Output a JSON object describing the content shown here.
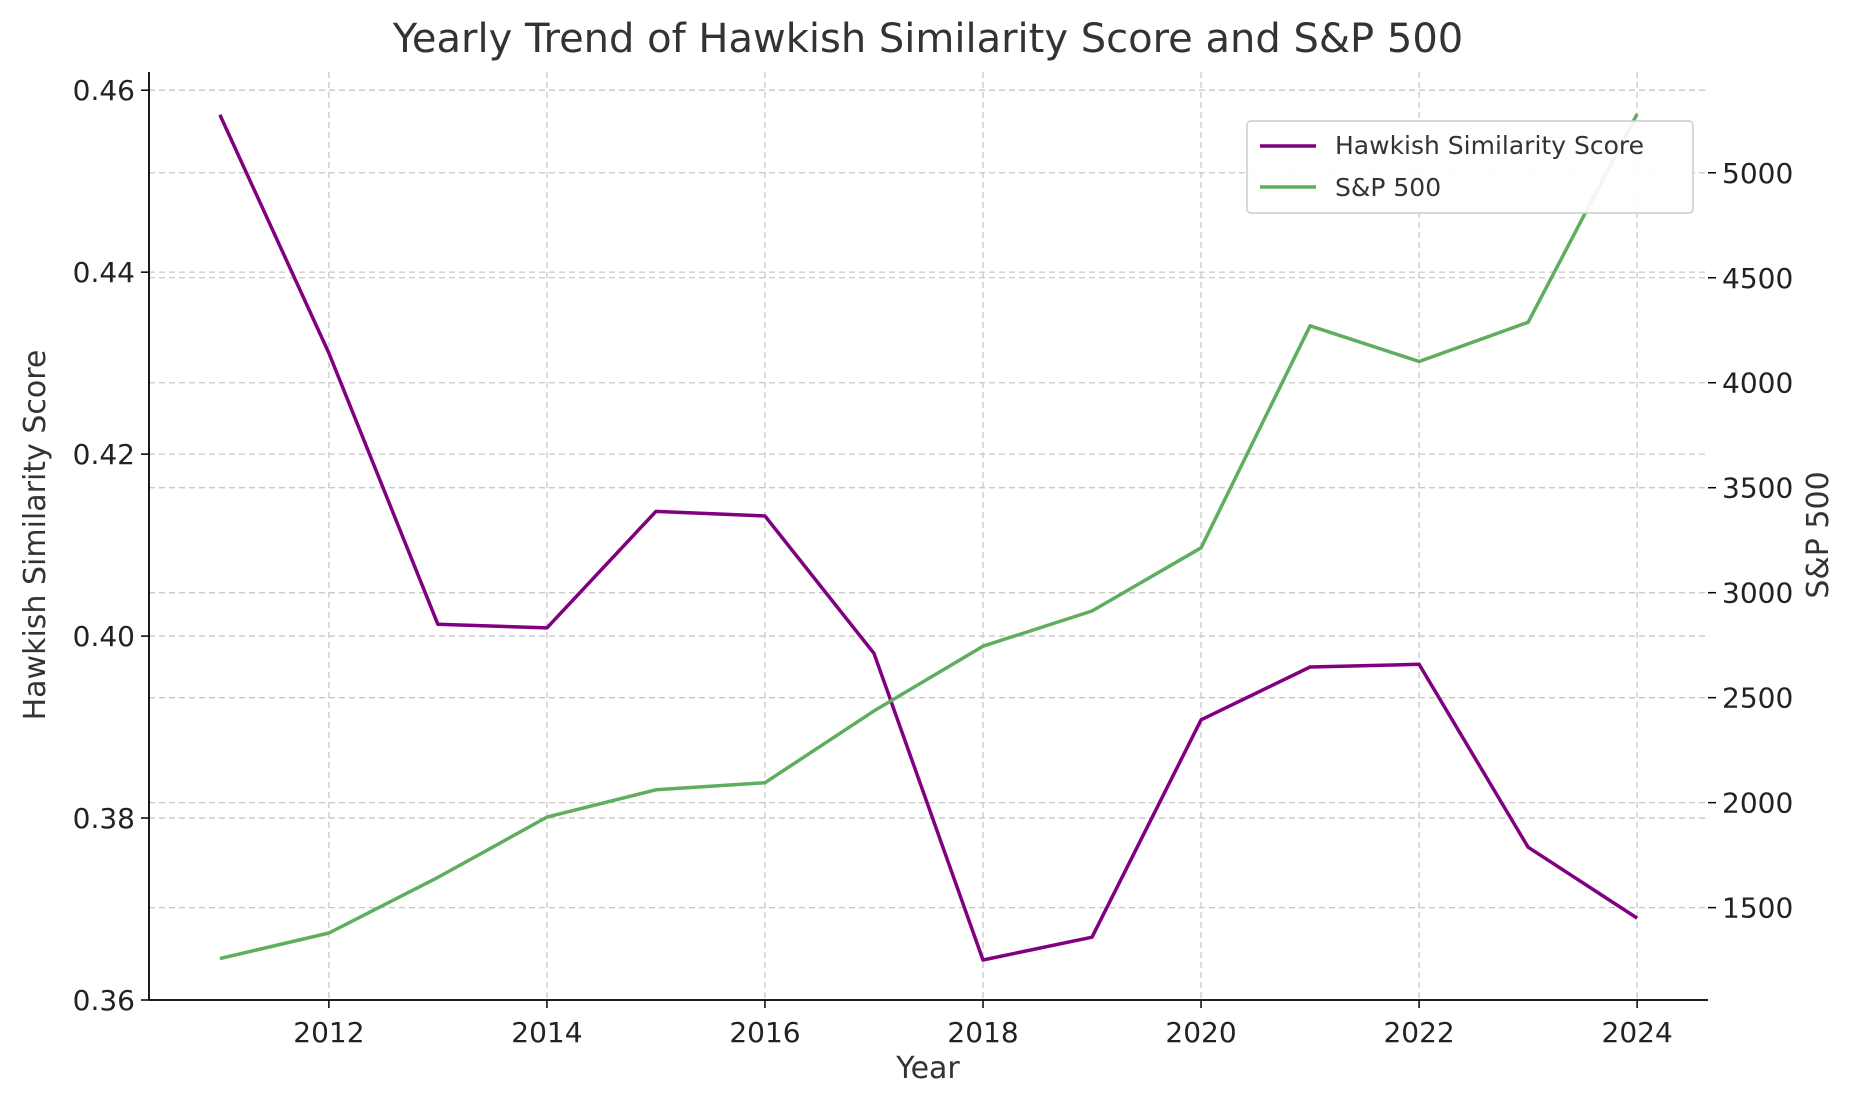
{
  "chart_data": {
    "type": "line",
    "title": "Yearly Trend of Hawkish Similarity Score and S&P 500",
    "xlabel": "Year",
    "ylabel_left": "Hawkish Similarity Score",
    "ylabel_right": "S&P 500",
    "x": [
      2011,
      2012,
      2013,
      2014,
      2015,
      2016,
      2017,
      2018,
      2019,
      2020,
      2021,
      2022,
      2023,
      2024
    ],
    "xlim": [
      2010.35,
      2024.65
    ],
    "x_ticks": [
      2012,
      2014,
      2016,
      2018,
      2020,
      2022,
      2024
    ],
    "x_tick_labels": [
      "2012",
      "2014",
      "2016",
      "2018",
      "2020",
      "2022",
      "2024"
    ],
    "ylim_left": [
      0.36,
      0.462
    ],
    "y_ticks_left": [
      0.36,
      0.38,
      0.4,
      0.42,
      0.44,
      0.46
    ],
    "y_tick_labels_left": [
      "0.36",
      "0.38",
      "0.40",
      "0.42",
      "0.44",
      "0.46"
    ],
    "ylim_right": [
      1060,
      5480
    ],
    "y_ticks_right": [
      1500,
      2000,
      2500,
      3000,
      3500,
      4000,
      4500,
      5000
    ],
    "y_tick_labels_right": [
      "1500",
      "2000",
      "2500",
      "3000",
      "3500",
      "4000",
      "4500",
      "5000"
    ],
    "grid": true,
    "legend_position": "top-right",
    "series": [
      {
        "name": "Hawkish Similarity Score",
        "axis": "left",
        "color": "#800080",
        "values": [
          0.4573,
          0.4311,
          0.4013,
          0.4009,
          0.4137,
          0.4132,
          0.3981,
          0.3644,
          0.3669,
          0.3908,
          0.3966,
          0.3969,
          0.3768,
          0.369
        ]
      },
      {
        "name": "S&P 500",
        "axis": "right",
        "color": "#5fad5f",
        "values": [
          1257,
          1379,
          1644,
          1931,
          2061,
          2095,
          2437,
          2745,
          2913,
          3214,
          4271,
          4101,
          4288,
          5280
        ]
      }
    ]
  }
}
